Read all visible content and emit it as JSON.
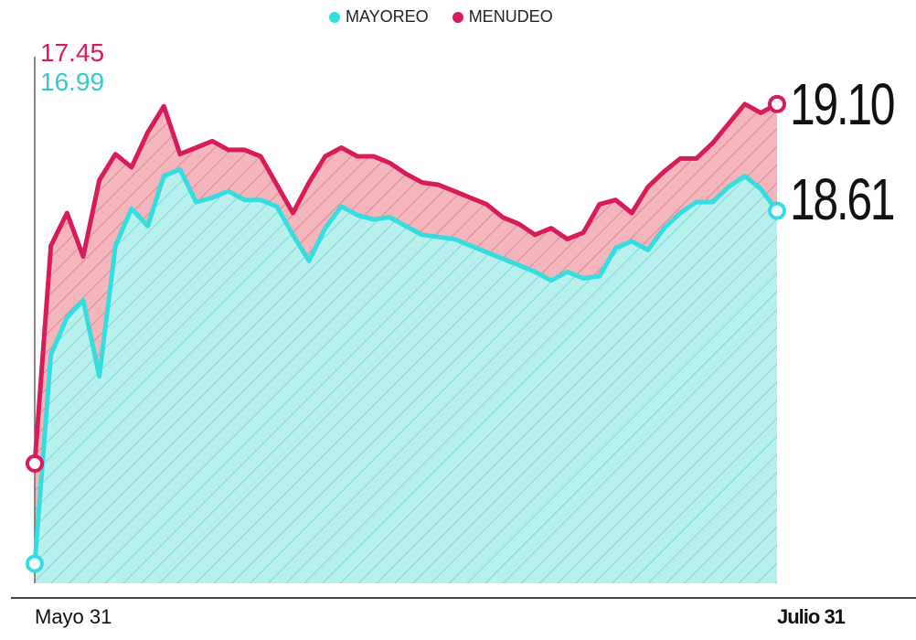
{
  "legend": {
    "mayoreo_label": "MAYOREO",
    "menudeo_label": "MENUDEO"
  },
  "annotations": {
    "start_menudeo": "17.45",
    "start_mayoreo": "16.99",
    "end_menudeo": "19.10",
    "end_mayoreo": "18.61"
  },
  "colors": {
    "mayoreo": "#35dde0",
    "menudeo": "#d81b5a",
    "mayoreo_fill": "#b8f0ee",
    "menudeo_fill": "#f4b6bc",
    "text": "#111111"
  },
  "chart_data": {
    "type": "area",
    "x_start_label": "Mayo 31",
    "x_end_label": "Julio 31",
    "series": [
      {
        "name": "MAYOREO",
        "values": [
          16.99,
          17.95,
          18.12,
          18.2,
          17.85,
          18.45,
          18.62,
          18.54,
          18.77,
          18.8,
          18.65,
          18.67,
          18.7,
          18.66,
          18.66,
          18.63,
          18.5,
          18.38,
          18.53,
          18.63,
          18.59,
          18.57,
          18.58,
          18.54,
          18.5,
          18.49,
          18.48,
          18.45,
          18.42,
          18.39,
          18.36,
          18.33,
          18.29,
          18.33,
          18.3,
          18.31,
          18.44,
          18.47,
          18.43,
          18.53,
          18.6,
          18.65,
          18.65,
          18.72,
          18.77,
          18.71,
          18.61
        ]
      },
      {
        "name": "MENUDEO",
        "values": [
          17.45,
          18.45,
          18.6,
          18.4,
          18.75,
          18.87,
          18.81,
          18.97,
          19.09,
          18.87,
          18.9,
          18.93,
          18.89,
          18.89,
          18.86,
          18.73,
          18.6,
          18.74,
          18.86,
          18.9,
          18.86,
          18.86,
          18.83,
          18.78,
          18.74,
          18.73,
          18.7,
          18.67,
          18.64,
          18.58,
          18.55,
          18.5,
          18.53,
          18.48,
          18.51,
          18.64,
          18.66,
          18.6,
          18.72,
          18.79,
          18.85,
          18.85,
          18.92,
          19.01,
          19.1,
          19.06,
          19.1
        ]
      }
    ],
    "ylim": [
      16.9,
      19.2
    ],
    "grid": false,
    "legend_position": "top"
  }
}
